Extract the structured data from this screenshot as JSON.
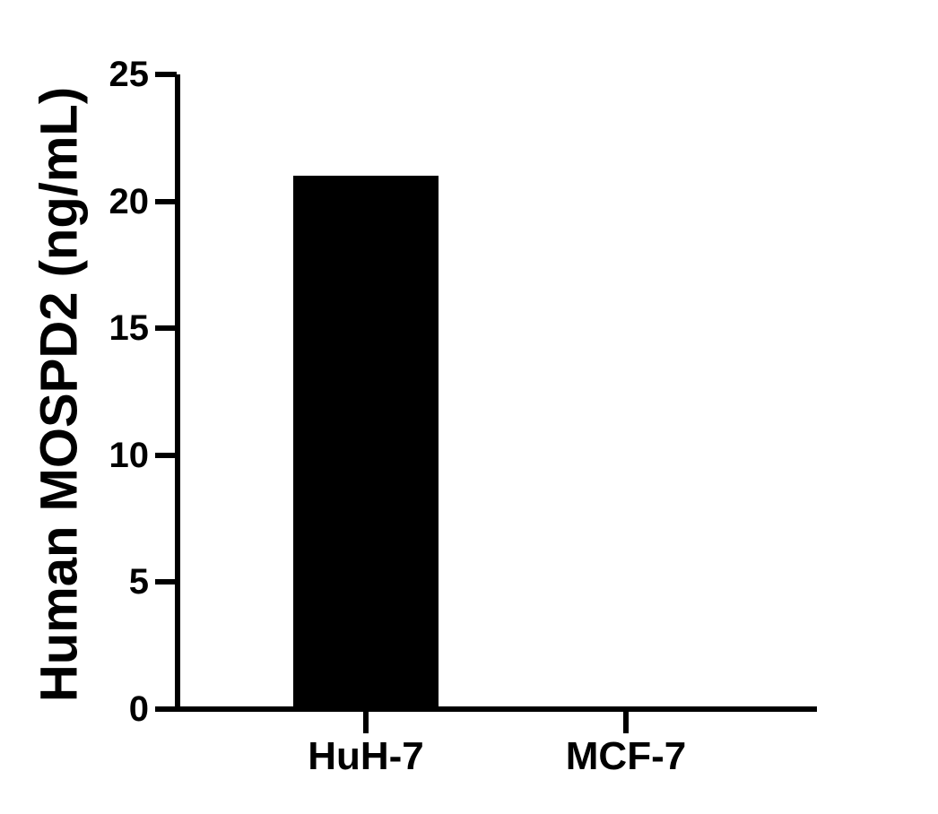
{
  "figure": {
    "background_color": "#ffffff",
    "axis_color": "#000000"
  },
  "chart_data": {
    "type": "bar",
    "title": "",
    "xlabel": "",
    "ylabel": "Human MOSPD2 (ng/mL)",
    "categories": [
      "HuH-7",
      "MCF-7"
    ],
    "values": [
      21.0,
      0.0
    ],
    "ylim": [
      0,
      25
    ],
    "yticks": [
      0,
      5,
      10,
      15,
      20,
      25
    ],
    "bar_color": "#000000",
    "grid": false,
    "legend_position": "none"
  }
}
